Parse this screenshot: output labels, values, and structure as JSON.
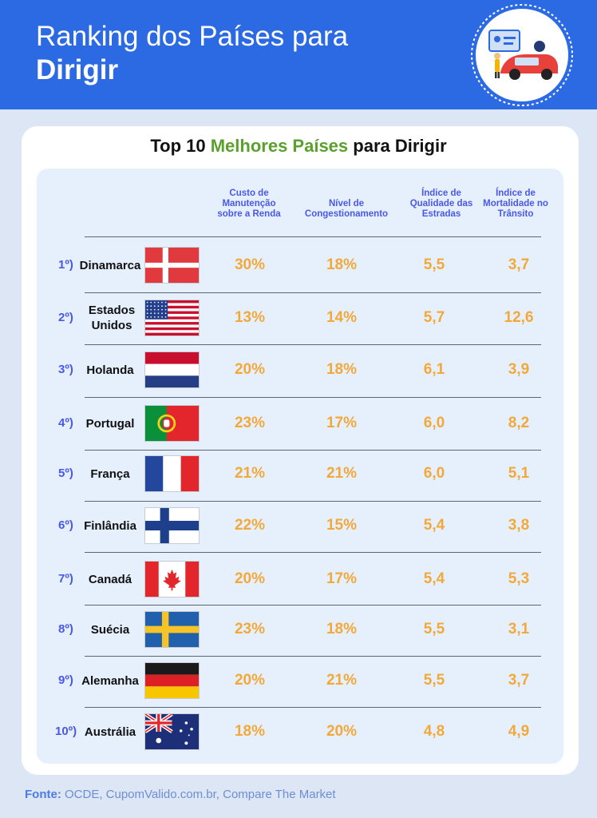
{
  "header": {
    "title_line1": "Ranking dos Países para",
    "title_line2": "Dirigir"
  },
  "table_title": {
    "part1": "Top 10 ",
    "highlight": "Melhores Países",
    "part2": " para Dirigir"
  },
  "columns": [
    "Custo de Manutenção sobre a Renda",
    "Nível de Congestionamento",
    "Índice de Qualidade das Estradas",
    "Índice de Mortalidade no Trânsito"
  ],
  "rows": [
    {
      "rank": "1º)",
      "country": "Dinamarca",
      "flag": "denmark-flag",
      "v1": "30%",
      "v2": "18%",
      "v3": "5,5",
      "v4": "3,7"
    },
    {
      "rank": "2º)",
      "country": "Estados Unidos",
      "flag": "usa-flag",
      "v1": "13%",
      "v2": "14%",
      "v3": "5,7",
      "v4": "12,6"
    },
    {
      "rank": "3º)",
      "country": "Holanda",
      "flag": "netherlands-flag",
      "v1": "20%",
      "v2": "18%",
      "v3": "6,1",
      "v4": "3,9"
    },
    {
      "rank": "4º)",
      "country": "Portugal",
      "flag": "portugal-flag",
      "v1": "23%",
      "v2": "17%",
      "v3": "6,0",
      "v4": "8,2"
    },
    {
      "rank": "5º)",
      "country": "França",
      "flag": "france-flag",
      "v1": "21%",
      "v2": "21%",
      "v3": "6,0",
      "v4": "5,1"
    },
    {
      "rank": "6º)",
      "country": "Finlândia",
      "flag": "finland-flag",
      "v1": "22%",
      "v2": "15%",
      "v3": "5,4",
      "v4": "3,8"
    },
    {
      "rank": "7º)",
      "country": "Canadá",
      "flag": "canada-flag",
      "v1": "20%",
      "v2": "17%",
      "v3": "5,4",
      "v4": "5,3"
    },
    {
      "rank": "8º)",
      "country": "Suécia",
      "flag": "sweden-flag",
      "v1": "23%",
      "v2": "18%",
      "v3": "5,5",
      "v4": "3,1"
    },
    {
      "rank": "9º)",
      "country": "Alemanha",
      "flag": "germany-flag",
      "v1": "20%",
      "v2": "21%",
      "v3": "5,5",
      "v4": "3,7"
    },
    {
      "rank": "10º)",
      "country": "Austrália",
      "flag": "australia-flag",
      "v1": "18%",
      "v2": "20%",
      "v3": "4,8",
      "v4": "4,9"
    }
  ],
  "source": {
    "label": "Fonte:",
    "text": " OCDE, CupomValido.com.br, Compare The Market"
  },
  "colors": {
    "header_blue": "#2b6ae3",
    "accent_green": "#5aa02c",
    "value_orange": "#f3a83a",
    "rank_blue": "#4a58e8"
  }
}
